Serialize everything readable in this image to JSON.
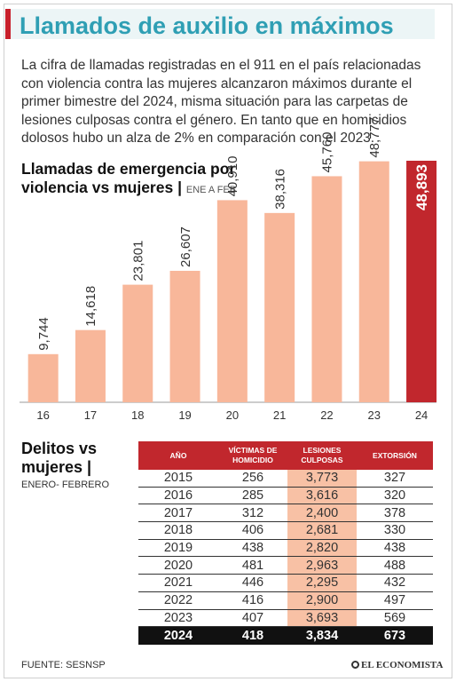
{
  "header": {
    "title": "Llamados de auxilio en máximos",
    "intro": "La cifra de llamadas registradas en el 911 en el país relacionadas con violencia contra las mujeres alcanzaron máximos durante el primer bimestre del 2024, misma situación para las carpetas de lesiones culposas contra el género. En tanto que en homicidios dolosos hubo un alza de 2% en comparación con el 2023."
  },
  "chart_title": {
    "main": "Llamadas de emergencia por violencia vs mujeres",
    "sub": "ENE A FEB"
  },
  "chart_data": {
    "type": "bar",
    "title": "Llamadas de emergencia por violencia vs mujeres",
    "subtitle": "ENE A FEB",
    "categories": [
      "16",
      "17",
      "18",
      "19",
      "20",
      "21",
      "22",
      "23",
      "24"
    ],
    "values": [
      9744,
      14618,
      23801,
      26607,
      40910,
      38316,
      45760,
      48777,
      48893
    ],
    "labels": [
      "9,744",
      "14,618",
      "23,801",
      "26,607",
      "40,910",
      "38,316",
      "45,760",
      "48,777",
      "48,893"
    ],
    "highlight_index": 8,
    "colors": {
      "bar": "#f8b79a",
      "highlight": "#c1272d"
    }
  },
  "delitos": {
    "title_line1": "Delitos vs",
    "title_line2": "mujeres",
    "sub": "ENERO- FEBRERO",
    "headers": [
      "AÑO",
      "VÍCTIMAS DE HOMICIDIO",
      "LESIONES CULPOSAS",
      "EXTORSIÓN"
    ],
    "rows": [
      [
        "2015",
        "256",
        "3,773",
        "327"
      ],
      [
        "2016",
        "285",
        "3,616",
        "320"
      ],
      [
        "2017",
        "312",
        "2,400",
        "378"
      ],
      [
        "2018",
        "406",
        "2,681",
        "330"
      ],
      [
        "2019",
        "438",
        "2,820",
        "438"
      ],
      [
        "2020",
        "481",
        "2,963",
        "488"
      ],
      [
        "2021",
        "446",
        "2,295",
        "432"
      ],
      [
        "2022",
        "416",
        "2,900",
        "497"
      ],
      [
        "2023",
        "407",
        "3,693",
        "569"
      ],
      [
        "2024",
        "418",
        "3,834",
        "673"
      ]
    ]
  },
  "footer": {
    "source": "FUENTE: SESNSP",
    "brand": "EL ECONOMISTA"
  }
}
